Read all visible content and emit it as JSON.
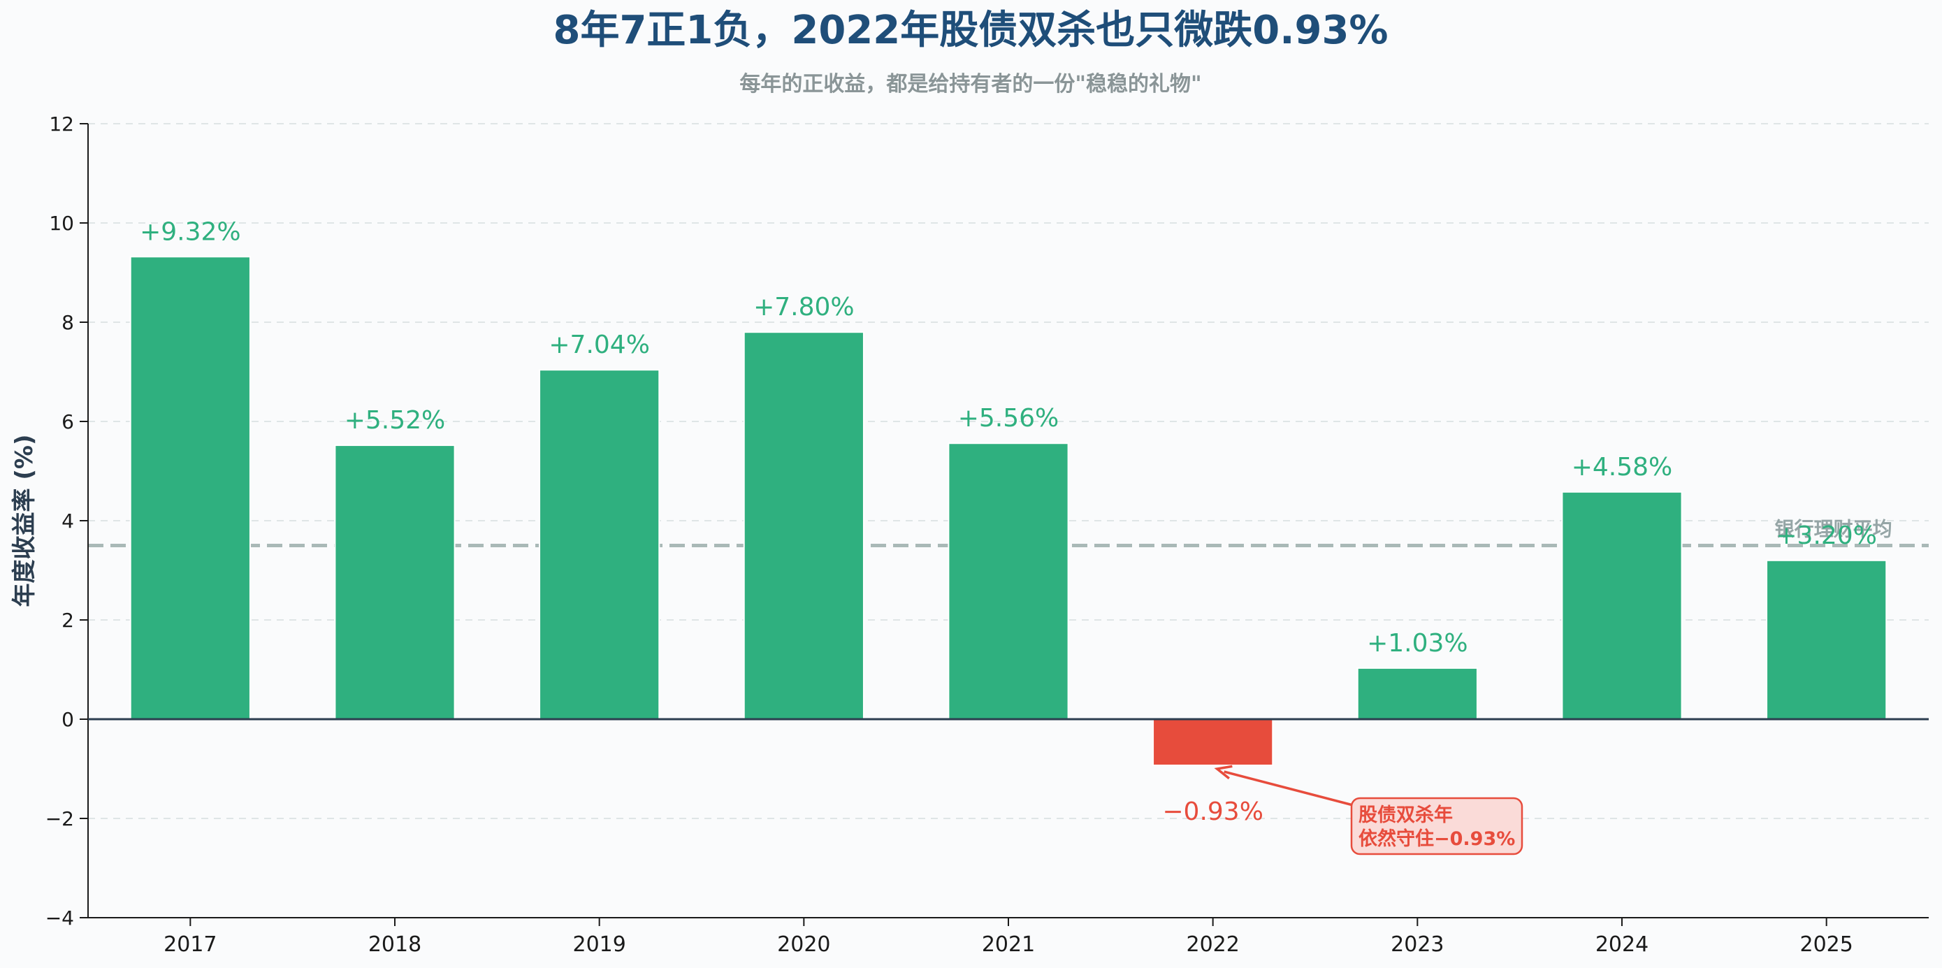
{
  "chart_data": {
    "type": "bar",
    "title": "8年7正1负，2022年股债双杀也只微跌0.93%",
    "subtitle": "每年的正收益，都是给持有者的一份\"稳稳的礼物\"",
    "ylabel": "年度收益率 (%)",
    "xlabel": "",
    "ylim": [
      -4,
      12
    ],
    "yticks": [
      -4,
      -2,
      0,
      2,
      4,
      6,
      8,
      10,
      12
    ],
    "ytick_labels": [
      "−4",
      "−2",
      "0",
      "2",
      "4",
      "6",
      "8",
      "10",
      "12"
    ],
    "categories": [
      "2017",
      "2018",
      "2019",
      "2020",
      "2021",
      "2022",
      "2023",
      "2024",
      "2025"
    ],
    "values": [
      9.32,
      5.52,
      7.04,
      7.8,
      5.56,
      -0.93,
      1.03,
      4.58,
      3.2
    ],
    "value_labels": [
      "+9.32%",
      "+5.52%",
      "+7.04%",
      "+7.80%",
      "+5.56%",
      "−0.93%",
      "+1.03%",
      "+4.58%",
      "+3.20%"
    ],
    "positive_color": "#2fb07f",
    "negative_color": "#e74c3c",
    "grid": true,
    "reference_line": {
      "value": 3.5,
      "label": "银行理财平均",
      "color": "#a9b9b7"
    },
    "annotation": {
      "target_category": "2022",
      "lines": [
        "股债双杀年",
        "依然守住−0.93%"
      ],
      "color": "#e74c3c",
      "background": "#fadbd8"
    }
  }
}
